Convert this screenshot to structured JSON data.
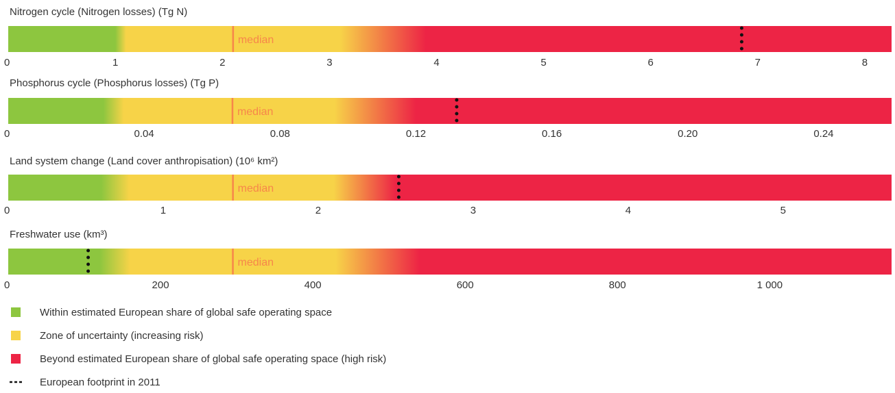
{
  "colors": {
    "safe": "#8dc63f",
    "uncertainty": "#f7d348",
    "high_risk": "#ed2445",
    "median": "#f7864a",
    "footprint": "#111111"
  },
  "median_label": "median",
  "legend": [
    {
      "key": "safe",
      "label": "Within estimated European share of global safe operating space"
    },
    {
      "key": "uncertainty",
      "label": "Zone of uncertainty (increasing risk)"
    },
    {
      "key": "high_risk",
      "label": "Beyond estimated European share of global safe operating space (high risk)"
    },
    {
      "key": "footprint",
      "label": "European footprint in 2011"
    }
  ],
  "chart_data": [
    {
      "type": "bar",
      "title": "Nitrogen cycle (Nitrogen losses) (Tg N)",
      "xlim": [
        0,
        8.25
      ],
      "ticks": [
        0,
        1,
        2,
        3,
        4,
        5,
        6,
        7,
        8
      ],
      "tick_labels": [
        "0",
        "1",
        "2",
        "3",
        "4",
        "5",
        "6",
        "7",
        "8"
      ],
      "safe_end": 1.0,
      "uncertainty_start": 1.1,
      "uncertainty_end": 3.1,
      "high_risk_start": 3.9,
      "median": 2.1,
      "footprint": 6.85
    },
    {
      "type": "bar",
      "title": "Phosphorus cycle (Phosphorus losses) (Tg P)",
      "xlim": [
        0,
        0.26
      ],
      "ticks": [
        0,
        0.04,
        0.08,
        0.12,
        0.16,
        0.2,
        0.24
      ],
      "tick_labels": [
        "0",
        "0.04",
        "0.08",
        "0.12",
        "0.16",
        "0.20",
        "0.24"
      ],
      "safe_end": 0.028,
      "uncertainty_start": 0.034,
      "uncertainty_end": 0.096,
      "high_risk_start": 0.12,
      "median": 0.066,
      "footprint": 0.132
    },
    {
      "type": "bar",
      "title": "Land system change (Land cover anthropisation) (10⁶ km²)",
      "xlim": [
        0,
        5.7
      ],
      "ticks": [
        0,
        1,
        2,
        3,
        4,
        5
      ],
      "tick_labels": [
        "0",
        "1",
        "2",
        "3",
        "4",
        "5"
      ],
      "safe_end": 0.6,
      "uncertainty_start": 0.78,
      "uncertainty_end": 2.1,
      "high_risk_start": 2.5,
      "median": 1.45,
      "footprint": 2.52
    },
    {
      "type": "bar",
      "title": "Freshwater use (km³)",
      "xlim": [
        0,
        1160
      ],
      "ticks": [
        0,
        200,
        400,
        600,
        800,
        1000
      ],
      "tick_labels": [
        "0",
        "200",
        "400",
        "600",
        "800",
        "1 000"
      ],
      "safe_end": 120,
      "uncertainty_start": 160,
      "uncertainty_end": 430,
      "high_risk_start": 540,
      "median": 295,
      "footprint": 105
    }
  ]
}
